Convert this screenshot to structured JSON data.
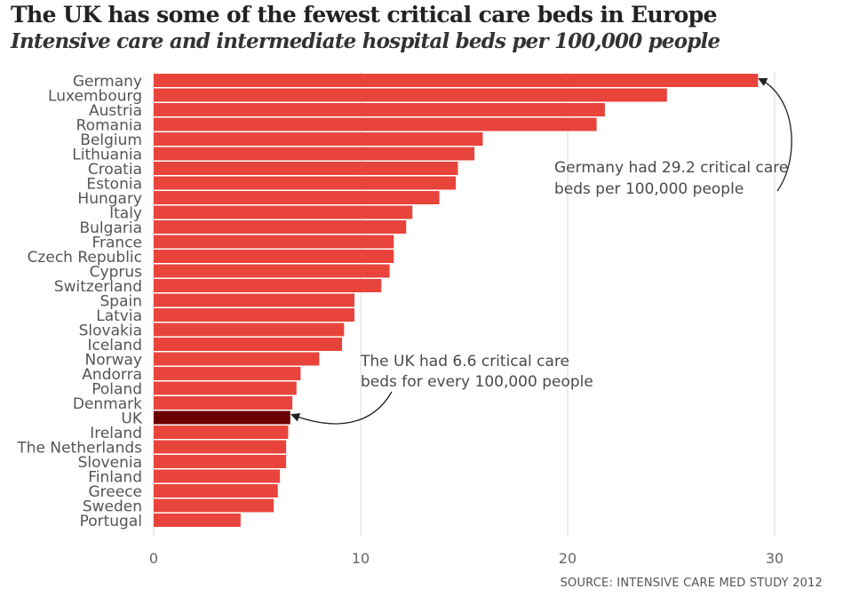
{
  "header": {
    "title": "The UK has some of the fewest critical care beds in Europe",
    "subtitle": "Intensive care and intermediate hospital beds per 100,000 people"
  },
  "source": "SOURCE: INTENSIVE CARE MED STUDY 2012",
  "colors": {
    "bar": "#e8443c",
    "highlight": "#6b0000",
    "grid": "#d9d9d9"
  },
  "annotations": {
    "germany": [
      "Germany had 29.2 critical care",
      "beds per 100,000 people"
    ],
    "uk": [
      "The UK had 6.6 critical care",
      "beds for every 100,000 people"
    ]
  },
  "chart_data": {
    "type": "bar",
    "orientation": "horizontal",
    "title": "The UK has some of the fewest critical care beds in Europe",
    "subtitle": "Intensive care and intermediate hospital beds per 100,000 people",
    "xlim": [
      0,
      32
    ],
    "x_ticks": [
      0,
      10,
      20,
      30
    ],
    "grid": true,
    "legend": "none",
    "highlight_category": "UK",
    "categories": [
      "Germany",
      "Luxembourg",
      "Austria",
      "Romania",
      "Belgium",
      "Lithuania",
      "Croatia",
      "Estonia",
      "Hungary",
      "Italy",
      "Bulgaria",
      "France",
      "Czech Republic",
      "Cyprus",
      "Switzerland",
      "Spain",
      "Latvia",
      "Slovakia",
      "Iceland",
      "Norway",
      "Andorra",
      "Poland",
      "Denmark",
      "UK",
      "Ireland",
      "The Netherlands",
      "Slovenia",
      "Finland",
      "Greece",
      "Sweden",
      "Portugal"
    ],
    "values": [
      29.2,
      24.8,
      21.8,
      21.4,
      15.9,
      15.5,
      14.7,
      14.6,
      13.8,
      12.5,
      12.2,
      11.6,
      11.6,
      11.4,
      11.0,
      9.7,
      9.7,
      9.2,
      9.1,
      8.0,
      7.1,
      6.9,
      6.7,
      6.6,
      6.5,
      6.4,
      6.4,
      6.1,
      6.0,
      5.8,
      4.2
    ]
  }
}
